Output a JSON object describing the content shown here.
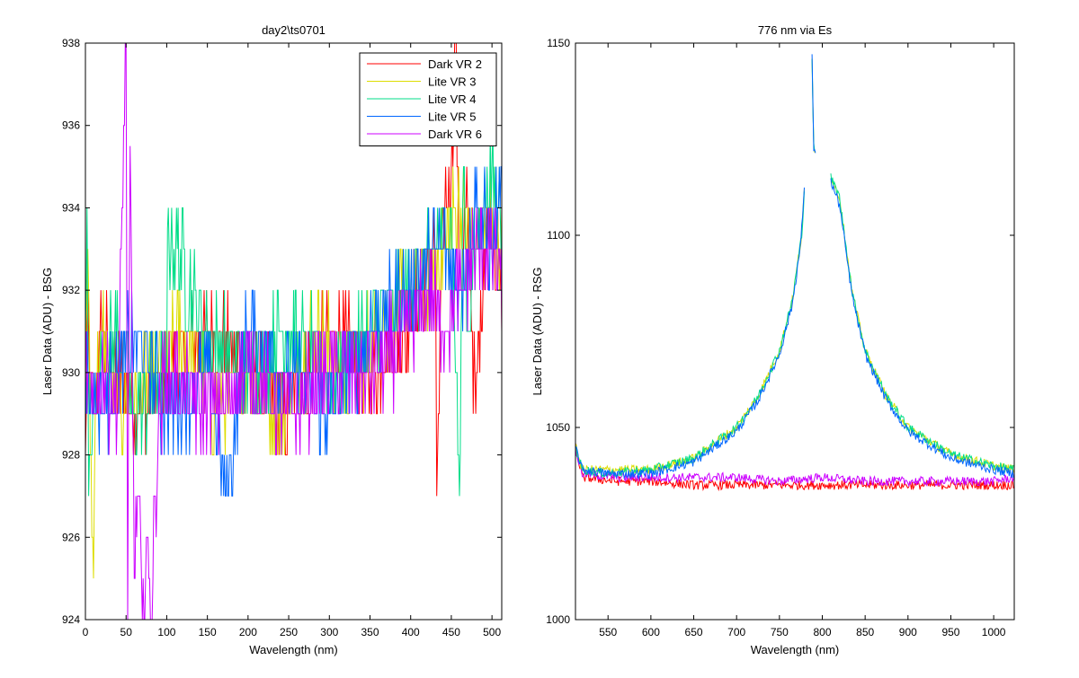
{
  "chart_data": [
    {
      "type": "line",
      "title": "day2\\ts0701",
      "xlabel": "Wavelength (nm)",
      "ylabel": "Laser Data (ADU) - BSG",
      "xlim": [
        0,
        512
      ],
      "ylim": [
        924,
        938
      ],
      "xticks": [
        0,
        50,
        100,
        150,
        200,
        250,
        300,
        350,
        400,
        450,
        500
      ],
      "yticks": [
        924,
        926,
        928,
        930,
        932,
        934,
        936,
        938
      ],
      "grid": false,
      "legend_position": "top-right",
      "series": [
        {
          "name": "Dark VR 2",
          "color": "#ff0000",
          "values_description": "noisy integer steps; ~929-931 for x<390, rising to 932-935 above 430",
          "x": [
            0,
            2,
            5,
            10,
            20,
            40,
            60,
            100,
            150,
            200,
            250,
            300,
            350,
            390,
            410,
            430,
            432,
            440,
            450,
            455,
            460,
            470,
            480,
            490,
            500,
            510
          ],
          "y": [
            928,
            931,
            930,
            929,
            931,
            930,
            929,
            930,
            931,
            930,
            929,
            931,
            930,
            931,
            932,
            933,
            927,
            934,
            935,
            938,
            932,
            934,
            929,
            933,
            934,
            932
          ]
        },
        {
          "name": "Lite VR 3",
          "color": "#dddd00",
          "x": [
            0,
            3,
            8,
            10,
            12,
            20,
            40,
            80,
            120,
            160,
            200,
            240,
            280,
            320,
            360,
            400,
            420,
            440,
            460,
            480,
            500,
            510
          ],
          "y": [
            930,
            933,
            926,
            925,
            929,
            931,
            929,
            930,
            931,
            929,
            930,
            929,
            931,
            930,
            931,
            932,
            932,
            933,
            934,
            933,
            934,
            933
          ]
        },
        {
          "name": "Lite VR 4",
          "color": "#00dd88",
          "x": [
            0,
            2,
            4,
            10,
            20,
            40,
            60,
            100,
            101,
            150,
            200,
            250,
            300,
            350,
            400,
            430,
            450,
            460,
            465,
            470,
            480,
            500,
            510
          ],
          "y": [
            931,
            934,
            927,
            929,
            930,
            931,
            929,
            930,
            933.5,
            931,
            930,
            931,
            930,
            931,
            932,
            933,
            934,
            927,
            935,
            931,
            933,
            935,
            934
          ]
        },
        {
          "name": "Lite VR 5",
          "color": "#0066ff",
          "x": [
            0,
            20,
            40,
            60,
            100,
            150,
            172,
            200,
            250,
            300,
            350,
            400,
            440,
            460,
            480,
            500,
            510
          ],
          "y": [
            930,
            929,
            930,
            931,
            929,
            930,
            927,
            931,
            930,
            929,
            931,
            932,
            933,
            932,
            934,
            933,
            934
          ]
        },
        {
          "name": "Dark VR 6",
          "color": "#cc00ff",
          "x": [
            0,
            10,
            20,
            40,
            50,
            52,
            55,
            60,
            65,
            70,
            75,
            80,
            90,
            100,
            150,
            200,
            250,
            300,
            350,
            400,
            420,
            440,
            460,
            480,
            500,
            510
          ],
          "y": [
            930,
            929,
            930,
            929,
            938,
            924,
            935.5,
            925,
            927,
            924,
            926,
            924,
            929,
            930,
            929,
            930,
            929,
            930,
            930,
            931,
            932,
            931,
            932,
            933,
            933,
            932.5
          ]
        }
      ]
    },
    {
      "type": "line",
      "title": "776 nm via Es",
      "xlabel": "Wavelength (nm)",
      "ylabel": "Laser Data (ADU) - RSG",
      "xlim": [
        512,
        1024
      ],
      "ylim": [
        1000,
        1150
      ],
      "xticks": [
        550,
        600,
        650,
        700,
        750,
        800,
        850,
        900,
        950,
        1000
      ],
      "yticks": [
        1000,
        1050,
        1100,
        1150
      ],
      "grid": false,
      "series": [
        {
          "color": "#ff0000",
          "x": [
            512,
            520,
            560,
            600,
            650,
            700,
            750,
            800,
            850,
            900,
            950,
            1000,
            1024
          ],
          "y": [
            1045,
            1037,
            1036,
            1036,
            1035,
            1035,
            1035,
            1035,
            1035,
            1035,
            1035,
            1035,
            1035
          ]
        },
        {
          "color": "#cc00ff",
          "x": [
            512,
            520,
            560,
            600,
            650,
            700,
            750,
            800,
            850,
            900,
            950,
            1000,
            1024
          ],
          "y": [
            1044,
            1038,
            1037,
            1037,
            1037,
            1037,
            1036,
            1037,
            1036,
            1036,
            1036,
            1036,
            1037
          ]
        },
        {
          "color": "#dddd00",
          "x": [
            512,
            520,
            550,
            600,
            650,
            700,
            725,
            750,
            765,
            776,
            788,
            790,
            810,
            820,
            835,
            850,
            875,
            900,
            950,
            1000,
            1024
          ],
          "y": [
            1045,
            1039,
            1039,
            1039,
            1042,
            1050,
            1058,
            1070,
            1083,
            1100,
            1146,
            1123,
            1115,
            1110,
            1085,
            1070,
            1058,
            1050,
            1043,
            1040,
            1039
          ]
        },
        {
          "color": "#00dd88",
          "x": [
            512,
            520,
            550,
            600,
            650,
            700,
            725,
            750,
            765,
            776,
            788,
            790,
            810,
            820,
            835,
            850,
            875,
            900,
            950,
            1000,
            1024
          ],
          "y": [
            1045,
            1039,
            1038,
            1039,
            1042,
            1050,
            1058,
            1070,
            1083,
            1100,
            1146,
            1123,
            1115,
            1110,
            1085,
            1070,
            1058,
            1050,
            1043,
            1040,
            1039
          ]
        },
        {
          "color": "#0066ff",
          "x": [
            512,
            520,
            550,
            600,
            650,
            700,
            725,
            750,
            765,
            775,
            788,
            790,
            810,
            820,
            835,
            850,
            875,
            900,
            950,
            1000,
            1024
          ],
          "y": [
            1045,
            1039,
            1038,
            1038,
            1041,
            1049,
            1057,
            1069,
            1082,
            1098,
            1146,
            1123,
            1114,
            1108,
            1084,
            1069,
            1057,
            1049,
            1042,
            1039,
            1038
          ]
        }
      ]
    }
  ]
}
